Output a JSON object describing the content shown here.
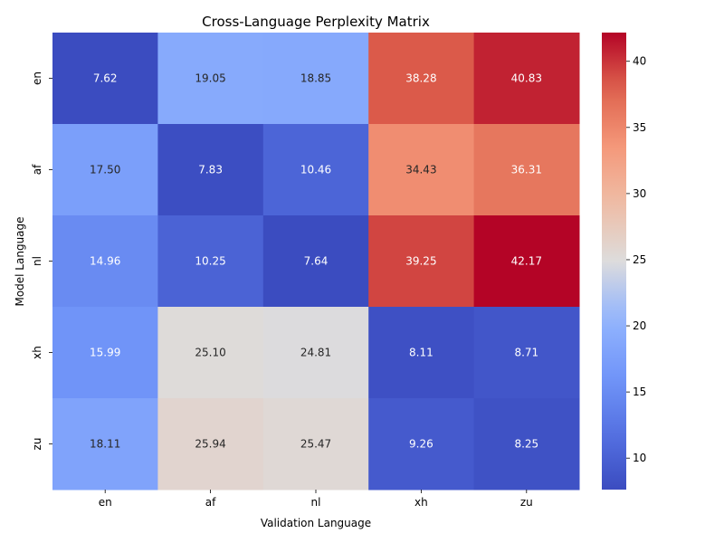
{
  "chart_data": {
    "type": "heatmap",
    "title": "Cross-Language Perplexity Matrix",
    "xlabel": "Validation Language",
    "ylabel": "Model Language",
    "x_categories": [
      "en",
      "af",
      "nl",
      "xh",
      "zu"
    ],
    "y_categories": [
      "en",
      "af",
      "nl",
      "xh",
      "zu"
    ],
    "values": [
      [
        7.62,
        19.05,
        18.85,
        38.28,
        40.83
      ],
      [
        17.5,
        7.83,
        10.46,
        34.43,
        36.31
      ],
      [
        14.96,
        10.25,
        7.64,
        39.25,
        42.17
      ],
      [
        15.99,
        25.1,
        24.81,
        8.11,
        8.71
      ],
      [
        18.11,
        25.94,
        25.47,
        9.26,
        8.25
      ]
    ],
    "value_labels": [
      [
        "7.62",
        "19.05",
        "18.85",
        "38.28",
        "40.83"
      ],
      [
        "17.50",
        "7.83",
        "10.46",
        "34.43",
        "36.31"
      ],
      [
        "14.96",
        "10.25",
        "7.64",
        "39.25",
        "42.17"
      ],
      [
        "15.99",
        "25.10",
        "24.81",
        "8.11",
        "8.71"
      ],
      [
        "18.11",
        "25.94",
        "25.47",
        "9.26",
        "8.25"
      ]
    ],
    "colormap": "coolwarm",
    "vmin": 7.62,
    "vmax": 42.17,
    "colorbar_ticks": [
      10,
      15,
      20,
      25,
      30,
      35,
      40
    ],
    "colorbar_tick_labels": [
      "10",
      "15",
      "20",
      "25",
      "30",
      "35",
      "40"
    ],
    "colors": {
      "low": "#3b4cc0",
      "mid": "#dddcdc",
      "high": "#b40426"
    }
  }
}
